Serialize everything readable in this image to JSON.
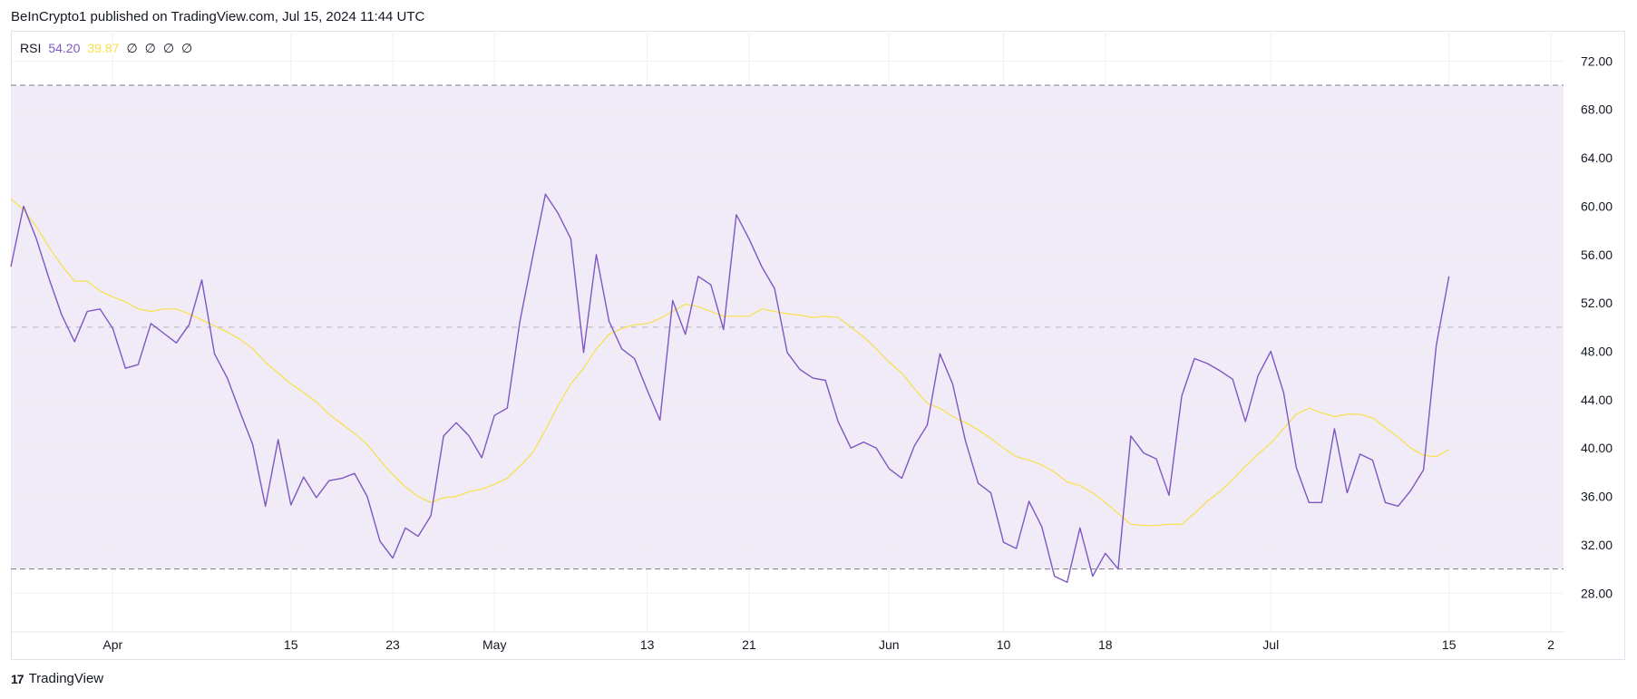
{
  "header": {
    "text": "BeInCrypto1 published on TradingView.com, Jul 15, 2024 11:44 UTC"
  },
  "legend": {
    "name": "RSI",
    "rsi_value": "54.20",
    "ma_value": "39.87",
    "na_values": [
      "∅",
      "∅",
      "∅",
      "∅"
    ]
  },
  "footer": {
    "brand": "TradingView",
    "logo_glyph": "17"
  },
  "colors": {
    "rsi": "#7e57c2",
    "ma": "#f7e04a",
    "band": "#ede7f6",
    "grid": "#eef0f4",
    "axis_text": "#131722"
  },
  "chart_data": {
    "type": "line",
    "ylim": [
      24.8,
      74.5
    ],
    "y_ticks": [
      72,
      68,
      64,
      60,
      56,
      52,
      48,
      44,
      40,
      36,
      32,
      28
    ],
    "y_tick_labels": [
      "72.00",
      "68.00",
      "64.00",
      "60.00",
      "56.00",
      "52.00",
      "48.00",
      "44.00",
      "40.00",
      "36.00",
      "32.00",
      "28.00"
    ],
    "band": {
      "upper": 70,
      "middle": 50,
      "lower": 30
    },
    "x_ticks": [
      {
        "label": "Apr",
        "index": 8
      },
      {
        "label": "15",
        "index": 22
      },
      {
        "label": "23",
        "index": 30
      },
      {
        "label": "May",
        "index": 38
      },
      {
        "label": "13",
        "index": 50
      },
      {
        "label": "21",
        "index": 58
      },
      {
        "label": "Jun",
        "index": 69
      },
      {
        "label": "10",
        "index": 78
      },
      {
        "label": "18",
        "index": 86
      },
      {
        "label": "Jul",
        "index": 99
      },
      {
        "label": "15",
        "index": 113
      },
      {
        "label": "2",
        "index": 121
      }
    ],
    "x_domain": [
      0,
      122
    ],
    "series": [
      {
        "key": "rsi",
        "values": [
          55.0,
          60.0,
          57.3,
          54.0,
          51.0,
          48.8,
          51.3,
          51.5,
          49.9,
          46.6,
          46.9,
          50.3,
          49.5,
          48.7,
          50.2,
          53.9,
          47.8,
          45.8,
          43.0,
          40.3,
          35.2,
          40.7,
          35.3,
          37.6,
          35.9,
          37.3,
          37.5,
          37.9,
          36.0,
          32.3,
          30.9,
          33.4,
          32.7,
          34.4,
          41.0,
          42.1,
          41.0,
          39.2,
          42.7,
          43.3,
          50.5,
          55.8,
          61.0,
          59.4,
          57.3,
          47.9,
          56.0,
          50.5,
          48.2,
          47.4,
          44.8,
          42.3,
          52.2,
          49.4,
          54.2,
          53.5,
          49.8,
          59.3,
          57.3,
          55.0,
          53.2,
          47.9,
          46.5,
          45.8,
          45.6,
          42.2,
          40.0,
          40.5,
          40.0,
          38.3,
          37.5,
          40.2,
          41.9,
          47.8,
          45.3,
          40.6,
          37.1,
          36.3,
          32.2,
          31.7,
          35.6,
          33.5,
          29.4,
          28.9,
          33.4,
          29.4,
          31.3,
          30.0,
          41.0,
          39.6,
          39.1,
          36.1,
          44.3,
          47.4,
          47.0,
          46.4,
          45.7,
          42.2,
          46.0,
          48.0,
          44.6,
          38.4,
          35.5,
          35.5,
          41.6,
          36.3,
          39.5,
          39.0,
          35.5,
          35.2,
          36.5,
          38.2,
          48.5,
          54.2
        ]
      },
      {
        "key": "ma",
        "values": [
          60.6,
          59.7,
          58.3,
          56.6,
          55.1,
          53.8,
          53.8,
          53.0,
          52.5,
          52.1,
          51.5,
          51.3,
          51.5,
          51.5,
          51.1,
          50.6,
          50.1,
          49.6,
          49.0,
          48.2,
          47.1,
          46.2,
          45.3,
          44.6,
          43.8,
          42.8,
          42.0,
          41.2,
          40.3,
          39.0,
          37.8,
          36.8,
          36.0,
          35.5,
          35.9,
          36.0,
          36.4,
          36.6,
          37.0,
          37.5,
          38.5,
          39.6,
          41.5,
          43.5,
          45.3,
          46.6,
          48.2,
          49.4,
          49.9,
          50.2,
          50.3,
          50.7,
          51.3,
          51.9,
          51.7,
          51.3,
          50.9,
          50.9,
          50.9,
          51.5,
          51.3,
          51.1,
          51.0,
          50.8,
          50.9,
          50.8,
          50.0,
          49.2,
          48.2,
          47.1,
          46.2,
          44.9,
          43.7,
          43.3,
          42.6,
          42.1,
          41.5,
          40.8,
          40.0,
          39.3,
          39.0,
          38.6,
          38.0,
          37.2,
          36.9,
          36.3,
          35.5,
          34.6,
          33.7,
          33.6,
          33.6,
          33.7,
          33.7,
          34.6,
          35.6,
          36.4,
          37.4,
          38.5,
          39.5,
          40.4,
          41.6,
          42.8,
          43.3,
          42.9,
          42.6,
          42.8,
          42.8,
          42.5,
          41.7,
          40.9,
          40.0,
          39.4,
          39.3,
          39.87
        ]
      }
    ]
  }
}
